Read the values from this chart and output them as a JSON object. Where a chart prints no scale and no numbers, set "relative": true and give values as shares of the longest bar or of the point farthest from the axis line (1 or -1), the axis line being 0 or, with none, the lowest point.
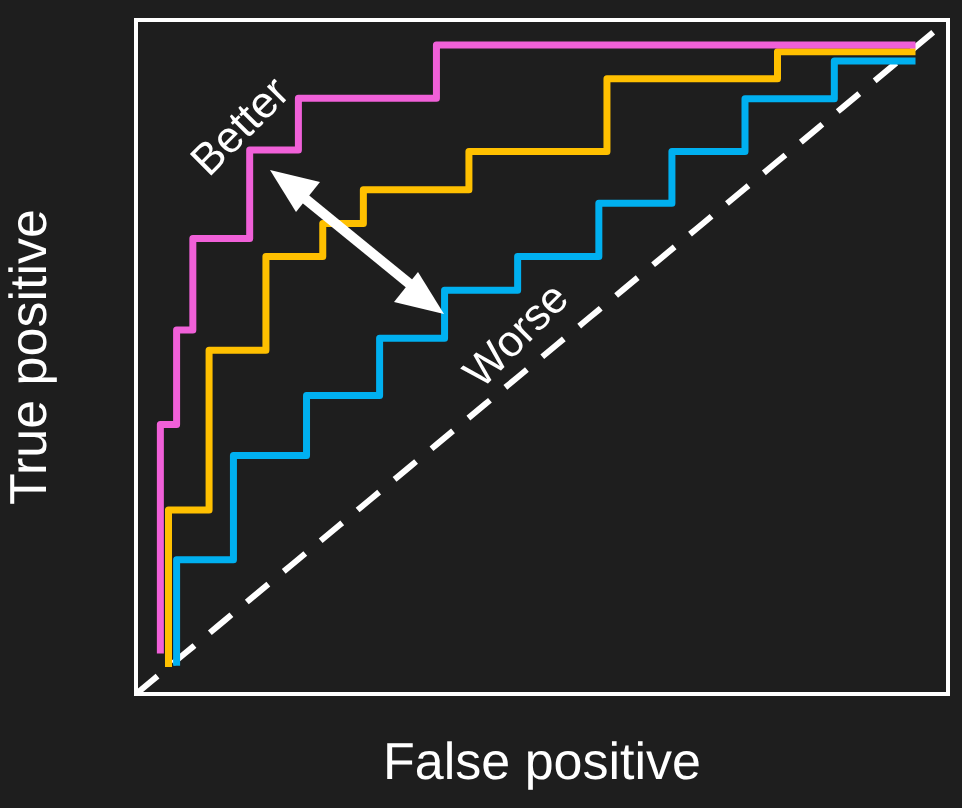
{
  "chart_data": {
    "type": "step",
    "xlabel": "False positive",
    "ylabel": "True positive",
    "relative": true,
    "annotations": [
      "Better",
      "Worse"
    ],
    "categories": [
      null,
      null,
      null,
      null,
      null,
      null,
      null,
      null,
      null,
      null,
      null,
      null,
      null,
      null,
      null,
      null,
      null,
      null,
      null,
      null,
      null,
      null,
      null,
      null,
      null,
      null,
      null,
      null,
      null,
      null,
      null,
      null,
      null,
      null,
      null,
      null,
      null,
      null,
      null,
      null,
      null,
      null,
      null,
      null,
      null,
      null,
      null,
      null,
      null,
      null,
      null,
      null,
      null,
      null,
      null,
      null,
      null,
      null,
      null,
      null,
      null,
      null,
      null,
      null,
      null,
      null,
      null,
      null,
      null,
      null,
      null,
      null,
      null,
      null,
      null,
      null,
      null,
      null,
      null,
      null,
      null,
      null,
      null,
      null,
      null,
      null,
      null,
      null,
      null,
      null,
      null,
      null,
      null,
      null,
      null,
      null,
      null,
      null,
      null,
      null,
      null
    ],
    "series": [
      {
        "color": "#f060d8",
        "values": [
          null,
          null,
          null,
          0.06,
          0.4,
          0.4,
          0.54,
          0.54,
          0.676,
          0.676,
          0.676,
          0.676,
          0.676,
          0.676,
          0.676,
          0.807,
          0.807,
          0.807,
          0.807,
          0.807,
          0.807,
          0.884,
          0.884,
          0.884,
          0.884,
          0.884,
          0.884,
          0.884,
          0.884,
          0.884,
          0.884,
          0.884,
          0.884,
          0.884,
          0.884,
          0.884,
          0.884,
          0.884,
          0.963,
          0.963,
          0.963,
          0.963,
          0.963,
          0.963,
          0.963,
          0.963,
          0.963,
          0.963,
          0.963,
          0.963,
          0.963,
          0.963,
          0.963,
          0.963,
          0.963,
          0.963,
          0.963,
          0.963,
          0.963,
          0.963,
          0.963,
          0.963,
          0.963,
          0.963,
          0.963,
          0.963,
          0.963,
          0.963,
          0.963,
          0.963,
          0.963,
          0.963,
          0.963,
          0.963,
          0.963,
          0.963,
          0.963,
          0.963,
          0.963,
          0.963,
          0.963,
          0.963,
          0.963,
          0.963,
          0.963,
          0.963,
          0.963,
          0.963,
          0.963,
          0.963,
          0.963,
          0.963,
          0.963,
          0.963,
          0.963,
          0.963,
          0.963,
          null,
          null,
          null,
          null
        ]
      },
      {
        "color": "#ffc000",
        "values": [
          null,
          null,
          null,
          null,
          0.04,
          0.273,
          0.273,
          0.273,
          0.273,
          0.273,
          0.51,
          0.51,
          0.51,
          0.51,
          0.51,
          0.51,
          0.51,
          0.649,
          0.649,
          0.649,
          0.649,
          0.649,
          0.649,
          0.649,
          0.698,
          0.698,
          0.698,
          0.698,
          0.698,
          0.748,
          0.748,
          0.748,
          0.748,
          0.748,
          0.748,
          0.748,
          0.748,
          0.748,
          0.748,
          0.748,
          0.748,
          0.748,
          0.805,
          0.805,
          0.805,
          0.805,
          0.805,
          0.805,
          0.805,
          0.805,
          0.805,
          0.805,
          0.805,
          0.805,
          0.805,
          0.805,
          0.805,
          0.805,
          0.805,
          0.913,
          0.913,
          0.913,
          0.913,
          0.913,
          0.913,
          0.913,
          0.913,
          0.913,
          0.913,
          0.913,
          0.913,
          0.913,
          0.913,
          0.913,
          0.913,
          0.913,
          0.913,
          0.913,
          0.913,
          0.913,
          0.953,
          0.953,
          0.953,
          0.953,
          0.953,
          0.953,
          0.953,
          0.953,
          0.953,
          0.953,
          0.953,
          0.953,
          0.953,
          0.953,
          0.953,
          0.953,
          0.953,
          null,
          null,
          null,
          null
        ]
      },
      {
        "color": "#00b0f0",
        "values": [
          null,
          null,
          null,
          null,
          null,
          0.042,
          0.199,
          0.199,
          0.199,
          0.199,
          0.199,
          0.199,
          0.199,
          0.354,
          0.354,
          0.354,
          0.354,
          0.354,
          0.354,
          0.354,
          0.354,
          0.354,
          0.443,
          0.443,
          0.443,
          0.443,
          0.443,
          0.443,
          0.443,
          0.443,
          0.443,
          0.528,
          0.528,
          0.528,
          0.528,
          0.528,
          0.528,
          0.528,
          0.528,
          0.599,
          0.599,
          0.599,
          0.599,
          0.599,
          0.599,
          0.599,
          0.599,
          0.599,
          0.649,
          0.649,
          0.649,
          0.649,
          0.649,
          0.649,
          0.649,
          0.649,
          0.649,
          0.649,
          0.728,
          0.728,
          0.728,
          0.728,
          0.728,
          0.728,
          0.728,
          0.728,
          0.728,
          0.805,
          0.805,
          0.805,
          0.805,
          0.805,
          0.805,
          0.805,
          0.805,
          0.805,
          0.883,
          0.883,
          0.883,
          0.883,
          0.883,
          0.883,
          0.883,
          0.883,
          0.883,
          0.883,
          0.883,
          0.939,
          0.939,
          0.939,
          0.939,
          0.939,
          0.939,
          0.939,
          0.939,
          0.939,
          0.939,
          null,
          null,
          null,
          null
        ]
      },
      {
        "type": "line",
        "color": "#ffffff",
        "line_style": "dashed",
        "values": [
          0,
          0.01,
          0.02,
          0.03,
          0.04,
          0.05,
          0.06,
          0.07,
          0.08,
          0.09,
          0.1,
          0.11,
          0.12,
          0.13,
          0.14,
          0.15,
          0.16,
          0.17,
          0.18,
          0.19,
          0.2,
          0.21,
          0.22,
          0.23,
          0.24,
          0.25,
          0.26,
          0.27,
          0.28,
          0.29,
          0.3,
          0.31,
          0.32,
          0.33,
          0.34,
          0.35,
          0.36,
          0.37,
          0.38,
          0.39,
          0.4,
          0.41,
          0.42,
          0.43,
          0.44,
          0.45,
          0.46,
          0.47,
          0.48,
          0.49,
          0.5,
          0.51,
          0.52,
          0.53,
          0.54,
          0.55,
          0.56,
          0.57,
          0.58,
          0.59,
          0.6,
          0.61,
          0.62,
          0.63,
          0.64,
          0.65,
          0.66,
          0.67,
          0.68,
          0.69,
          0.7,
          0.71,
          0.72,
          0.73,
          0.74,
          0.75,
          0.76,
          0.77,
          0.78,
          0.79,
          0.8,
          0.81,
          0.82,
          0.83,
          0.84,
          0.85,
          0.86,
          0.87,
          0.88,
          0.89,
          0.9,
          0.91,
          0.92,
          0.93,
          0.94,
          0.95,
          0.96,
          0.97,
          0.98,
          0.99,
          1
        ]
      }
    ]
  }
}
